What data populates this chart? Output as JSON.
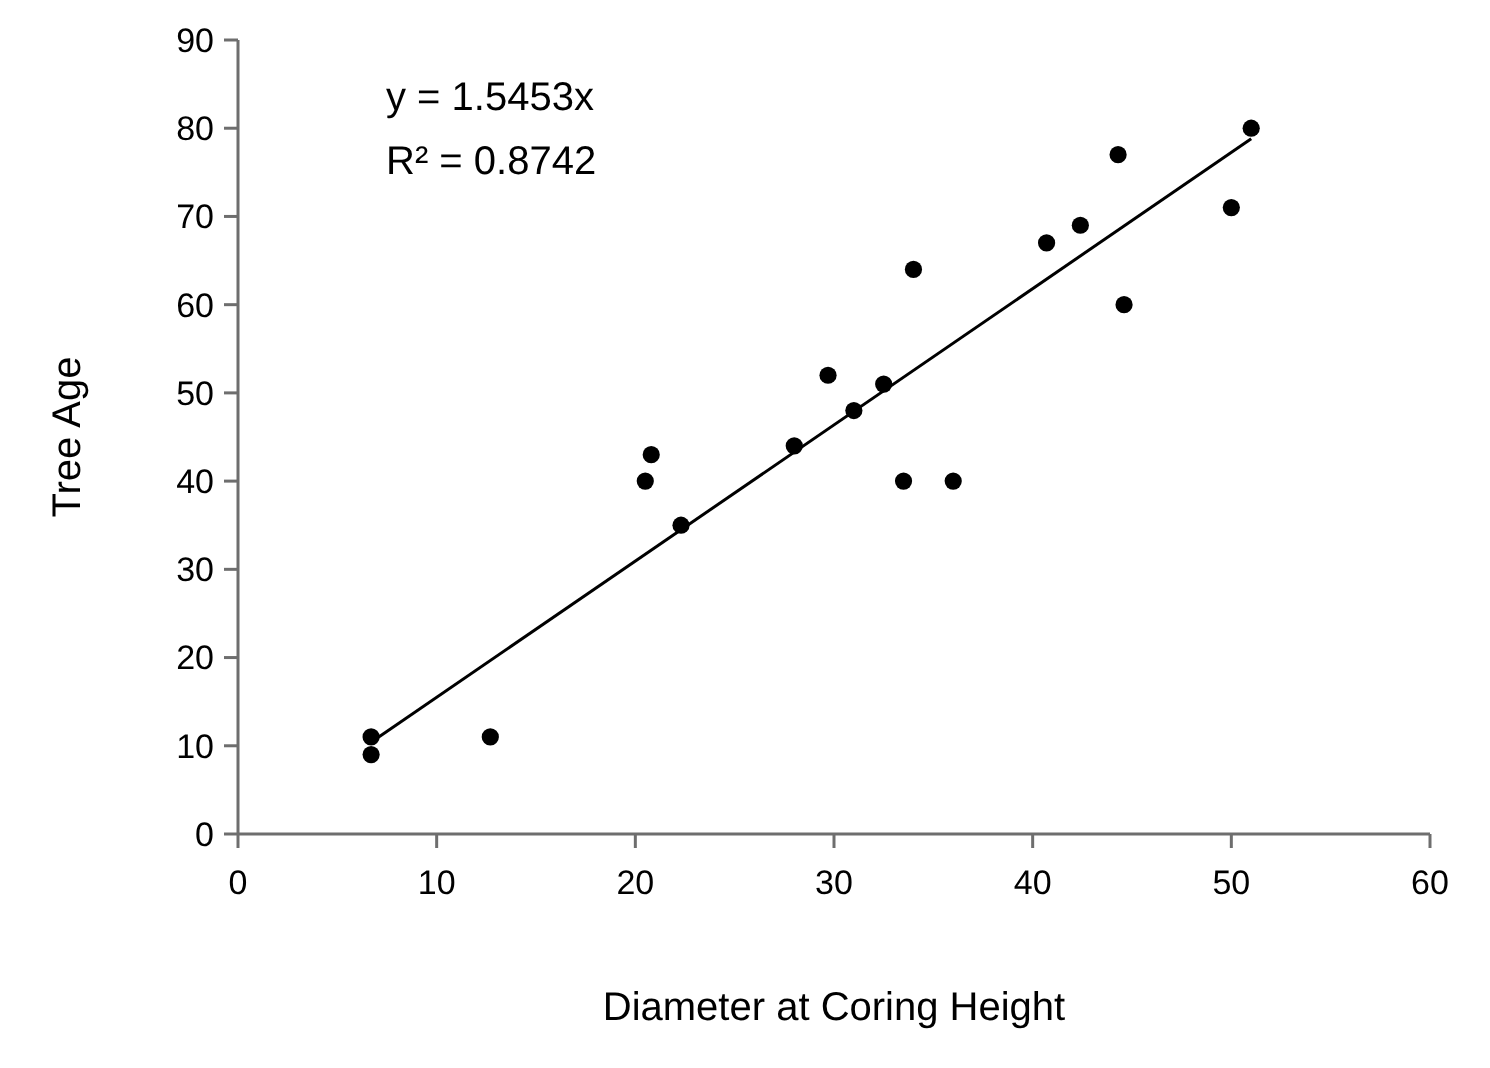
{
  "chart_data": {
    "type": "scatter",
    "xlabel": "Diameter at Coring Height",
    "ylabel": "Tree Age",
    "xlim": [
      0,
      60
    ],
    "ylim": [
      0,
      90
    ],
    "xticks": [
      0,
      10,
      20,
      30,
      40,
      50,
      60
    ],
    "yticks": [
      0,
      10,
      20,
      30,
      40,
      50,
      60,
      70,
      80,
      90
    ],
    "grid": false,
    "annotations": [
      "y = 1.5453x",
      "R² = 0.8742"
    ],
    "series": [
      {
        "color": "#000000",
        "marker": "circle",
        "x": [
          6.7,
          6.7,
          12.7,
          20.5,
          20.8,
          22.3,
          28,
          29.7,
          31,
          32.5,
          33.5,
          34,
          36,
          40.7,
          42.4,
          44.3,
          44.6,
          50,
          51
        ],
        "values": [
          11,
          9,
          11,
          40,
          43,
          35,
          44,
          52,
          48,
          51,
          40,
          64,
          40,
          67,
          69,
          77,
          60,
          71,
          80
        ]
      },
      {
        "type": "line",
        "color": "#000000",
        "x": [
          6.7,
          51
        ],
        "values": [
          10.4,
          78.8
        ]
      }
    ]
  }
}
